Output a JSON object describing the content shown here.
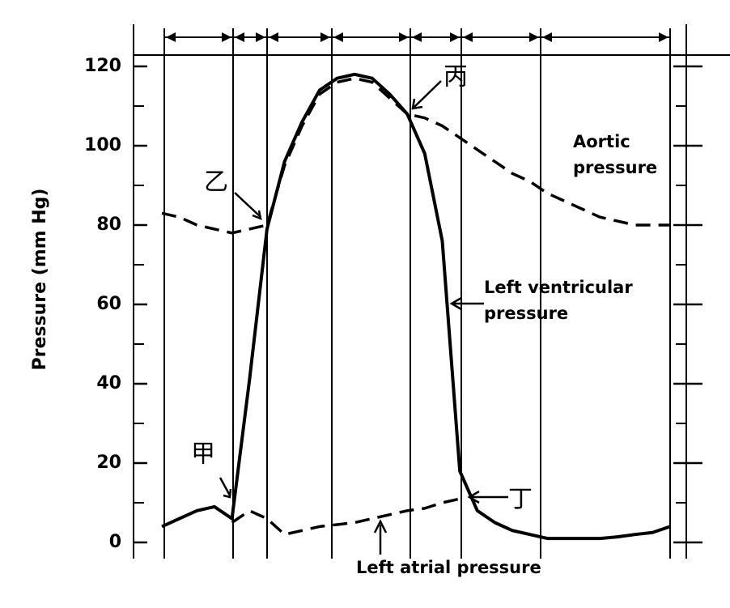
{
  "chart_data": {
    "type": "line",
    "y_label": "Pressure (mm Hg)",
    "categories": [
      null,
      null,
      null,
      null,
      null,
      null,
      null,
      null,
      null,
      null,
      null,
      null,
      null,
      null,
      null,
      null,
      null,
      null,
      null,
      null,
      null,
      null,
      null,
      null,
      null,
      null,
      null,
      null,
      null,
      null
    ],
    "series": [
      {
        "name": "Left ventricular pressure",
        "color": "#000000",
        "style": "solid",
        "values": [
          4,
          6,
          8,
          9,
          6,
          41,
          79,
          96,
          106,
          114,
          117,
          118,
          117,
          113,
          108,
          98,
          76,
          18,
          8,
          5,
          3,
          2,
          1,
          1,
          1,
          1,
          1.4,
          2,
          2.5,
          4
        ]
      },
      {
        "name": "Aortic pressure",
        "color": "#000000",
        "style": "dashed",
        "values": [
          83,
          82,
          80,
          79,
          78,
          79,
          80,
          95,
          105,
          113,
          116,
          117,
          116,
          112,
          108,
          107,
          105,
          102,
          99,
          96,
          93,
          91,
          88,
          86,
          84,
          82,
          81,
          80,
          80,
          80
        ]
      },
      {
        "name": "Left atrial pressure",
        "color": "#000000",
        "style": "dashed",
        "values": [
          null,
          null,
          null,
          null,
          5,
          8,
          6,
          2,
          3,
          4,
          4.5,
          5,
          6,
          7,
          8,
          8.6,
          10,
          11,
          null,
          null,
          null,
          null,
          null,
          null,
          null,
          null,
          null,
          null,
          null,
          null
        ]
      }
    ],
    "ylim": [
      0,
      120
    ],
    "yticks": [
      0,
      20,
      40,
      60,
      80,
      100,
      120
    ],
    "annotations": [
      {
        "text": "甲"
      },
      {
        "text": "乙"
      },
      {
        "text": "丙"
      },
      {
        "text": "丁"
      },
      {
        "lines": [
          "Aortic",
          "pressure"
        ]
      },
      {
        "lines": [
          "Left ventricular",
          "pressure"
        ]
      },
      {
        "lines": [
          "Left atrial pressure"
        ]
      }
    ]
  }
}
